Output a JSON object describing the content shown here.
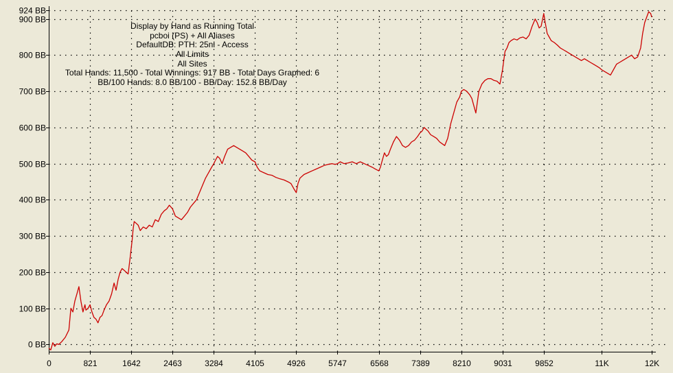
{
  "info": {
    "lines": [
      "Display by Hand as Running Total",
      "pcboi (PS) + All Aliases",
      "DefaultDB: PTH: 25nl - Access",
      "All Limits",
      "All Sites",
      "Total Hands: 11,500 - Total Winnings: 917 BB - Total Days Graphed: 6",
      "BB/100 Hands: 8.0 BB/100 - BB/Day: 152.8 BB/Day"
    ]
  },
  "colors": {
    "background": "#ece9d8",
    "line": "#cc0000",
    "grid": "#000000",
    "axis": "#000000"
  },
  "chart_data": {
    "type": "line",
    "title": "",
    "xlabel": "",
    "ylabel": "",
    "xlim": [
      0,
      12000
    ],
    "ylim": [
      -20,
      924
    ],
    "grid": true,
    "grid_style": "dotted",
    "y_ticks": [
      {
        "value": 924,
        "label": "924 BB"
      },
      {
        "value": 900,
        "label": "900 BB"
      },
      {
        "value": 800,
        "label": "800 BB"
      },
      {
        "value": 700,
        "label": "700 BB"
      },
      {
        "value": 600,
        "label": "600 BB"
      },
      {
        "value": 500,
        "label": "500 BB"
      },
      {
        "value": 400,
        "label": "400 BB"
      },
      {
        "value": 300,
        "label": "300 BB"
      },
      {
        "value": 200,
        "label": "200 BB"
      },
      {
        "value": 100,
        "label": "100 BB"
      },
      {
        "value": 0,
        "label": "0 BB"
      }
    ],
    "x_ticks": [
      {
        "value": 0,
        "label": "0"
      },
      {
        "value": 821,
        "label": "821"
      },
      {
        "value": 1642,
        "label": "1642"
      },
      {
        "value": 2463,
        "label": "2463"
      },
      {
        "value": 3284,
        "label": "3284"
      },
      {
        "value": 4105,
        "label": "4105"
      },
      {
        "value": 4926,
        "label": "4926"
      },
      {
        "value": 5747,
        "label": "5747"
      },
      {
        "value": 6568,
        "label": "6568"
      },
      {
        "value": 7389,
        "label": "7389"
      },
      {
        "value": 8210,
        "label": "8210"
      },
      {
        "value": 9031,
        "label": "9031"
      },
      {
        "value": 9852,
        "label": "9852"
      },
      {
        "value": 11000,
        "label": "11K"
      },
      {
        "value": 12000,
        "label": "12K"
      }
    ],
    "series": [
      {
        "x": [
          0,
          40,
          80,
          120,
          160,
          200,
          260,
          330,
          400,
          440,
          480,
          520,
          560,
          600,
          640,
          680,
          720,
          740,
          780,
          821,
          860,
          900,
          940,
          980,
          1020,
          1060,
          1100,
          1150,
          1200,
          1250,
          1300,
          1340,
          1380,
          1420,
          1460,
          1500,
          1540,
          1580,
          1620,
          1660,
          1680,
          1700,
          1740,
          1780,
          1820,
          1880,
          1940,
          2000,
          2060,
          2120,
          2180,
          2240,
          2300,
          2350,
          2400,
          2463,
          2520,
          2580,
          2640,
          2700,
          2760,
          2820,
          2880,
          2940,
          3000,
          3060,
          3120,
          3180,
          3240,
          3284,
          3320,
          3360,
          3400,
          3450,
          3500,
          3560,
          3620,
          3680,
          3740,
          3800,
          3860,
          3920,
          3980,
          4040,
          4105,
          4150,
          4200,
          4280,
          4360,
          4440,
          4520,
          4600,
          4680,
          4760,
          4820,
          4880,
          4926,
          4960,
          5000,
          5080,
          5160,
          5240,
          5320,
          5400,
          5480,
          5560,
          5640,
          5700,
          5747,
          5800,
          5880,
          5960,
          6040,
          6120,
          6200,
          6280,
          6360,
          6440,
          6500,
          6568,
          6600,
          6640,
          6680,
          6720,
          6760,
          6800,
          6860,
          6920,
          6980,
          7040,
          7100,
          7160,
          7220,
          7280,
          7340,
          7389,
          7430,
          7470,
          7510,
          7550,
          7600,
          7660,
          7720,
          7780,
          7830,
          7880,
          7940,
          8000,
          8060,
          8120,
          8180,
          8210,
          8260,
          8320,
          8380,
          8420,
          8460,
          8500,
          8560,
          8620,
          8680,
          8740,
          8800,
          8860,
          8920,
          8980,
          9031,
          9060,
          9080,
          9120,
          9160,
          9200,
          9260,
          9320,
          9380,
          9440,
          9500,
          9560,
          9620,
          9680,
          9720,
          9760,
          9800,
          9852,
          9880,
          9920,
          9960,
          10000,
          10060,
          10120,
          10180,
          10240,
          10300,
          10360,
          10420,
          10480,
          10540,
          10600,
          10660,
          10720,
          10780,
          10840,
          10900,
          10960,
          11000,
          11060,
          11120,
          11180,
          11240,
          11300,
          11360,
          11420,
          11480,
          11540,
          11600,
          11660,
          11720,
          11780,
          11820,
          11860,
          11900,
          11940,
          11980,
          12000
        ],
        "values": [
          -10,
          -15,
          5,
          -5,
          2,
          0,
          8,
          20,
          40,
          100,
          90,
          120,
          140,
          160,
          120,
          90,
          110,
          95,
          100,
          110,
          90,
          75,
          70,
          60,
          75,
          80,
          95,
          110,
          120,
          140,
          170,
          150,
          180,
          200,
          210,
          205,
          200,
          195,
          240,
          290,
          320,
          340,
          335,
          330,
          315,
          325,
          320,
          330,
          325,
          345,
          340,
          360,
          370,
          375,
          385,
          375,
          355,
          350,
          345,
          355,
          365,
          380,
          390,
          400,
          420,
          440,
          460,
          475,
          490,
          500,
          510,
          520,
          515,
          500,
          520,
          540,
          545,
          550,
          545,
          540,
          535,
          530,
          520,
          510,
          505,
          490,
          480,
          475,
          470,
          468,
          462,
          458,
          455,
          450,
          445,
          430,
          420,
          445,
          460,
          470,
          475,
          480,
          485,
          490,
          495,
          498,
          500,
          498,
          500,
          505,
          500,
          502,
          505,
          500,
          505,
          500,
          495,
          490,
          485,
          480,
          490,
          510,
          530,
          520,
          525,
          540,
          560,
          575,
          565,
          550,
          545,
          550,
          560,
          565,
          575,
          585,
          590,
          600,
          595,
          590,
          580,
          575,
          570,
          560,
          555,
          550,
          570,
          610,
          640,
          670,
          685,
          700,
          705,
          700,
          690,
          680,
          660,
          640,
          700,
          720,
          730,
          735,
          735,
          730,
          728,
          720,
          760,
          790,
          810,
          820,
          835,
          840,
          845,
          842,
          848,
          850,
          845,
          855,
          880,
          900,
          890,
          875,
          880,
          915,
          890,
          860,
          850,
          840,
          835,
          828,
          820,
          815,
          810,
          805,
          800,
          795,
          790,
          785,
          790,
          785,
          780,
          775,
          770,
          765,
          760,
          755,
          750,
          745,
          760,
          775,
          780,
          785,
          790,
          795,
          800,
          790,
          795,
          820,
          860,
          890,
          905,
          920,
          915,
          905
        ]
      }
    ]
  }
}
